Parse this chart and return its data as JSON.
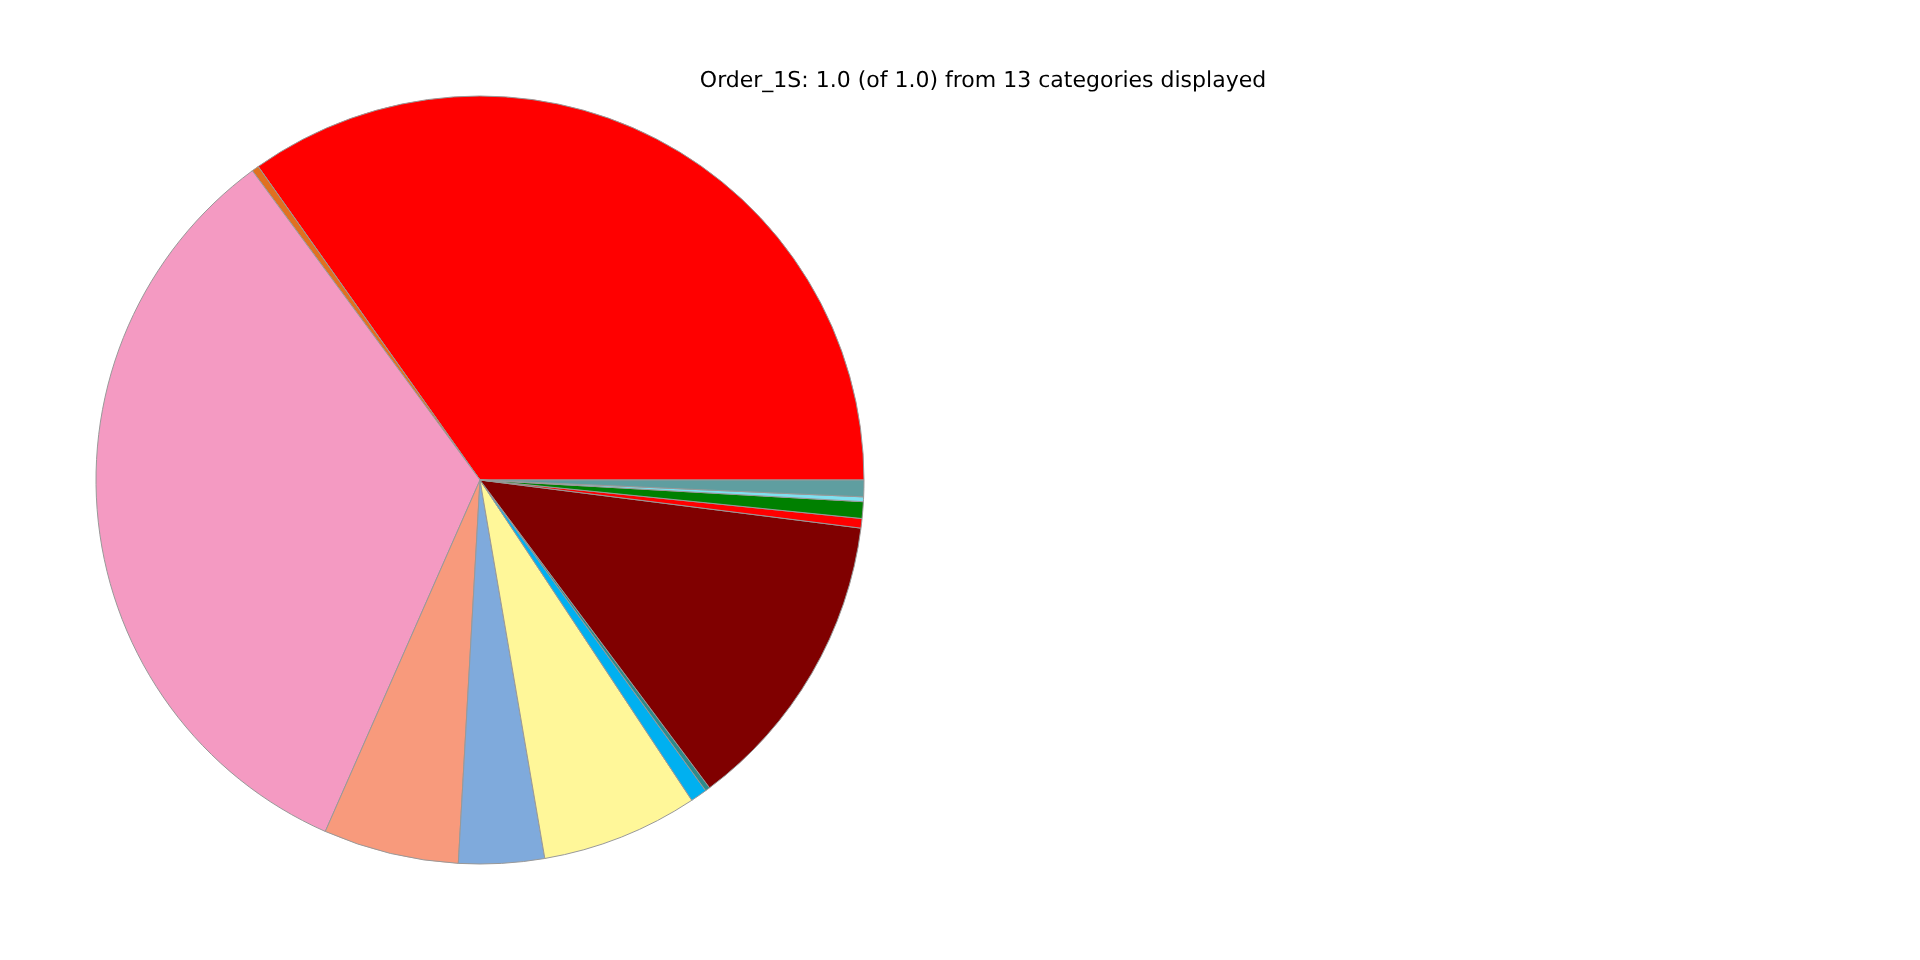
{
  "chart_data": {
    "type": "pie",
    "title": "Order_1S: 1.0 (of 1.0) from 13 categories displayed",
    "categories": [
      null,
      null,
      null,
      null,
      null,
      null,
      null,
      null,
      null,
      null,
      null,
      null,
      null
    ],
    "values": [
      34.8,
      0.3,
      33.3,
      5.7,
      3.6,
      6.6,
      0.7,
      0.2,
      12.8,
      0.4,
      0.7,
      0.2,
      0.7
    ],
    "colors": [
      "#ff0000",
      "#e07020",
      "#f49ac2",
      "#f89a7c",
      "#7faadc",
      "#fff799",
      "#00b0f0",
      "#2e8b8b",
      "#800000",
      "#ff0000",
      "#008000",
      "#7fe0f0",
      "#5f9ea0"
    ],
    "legend": false
  }
}
